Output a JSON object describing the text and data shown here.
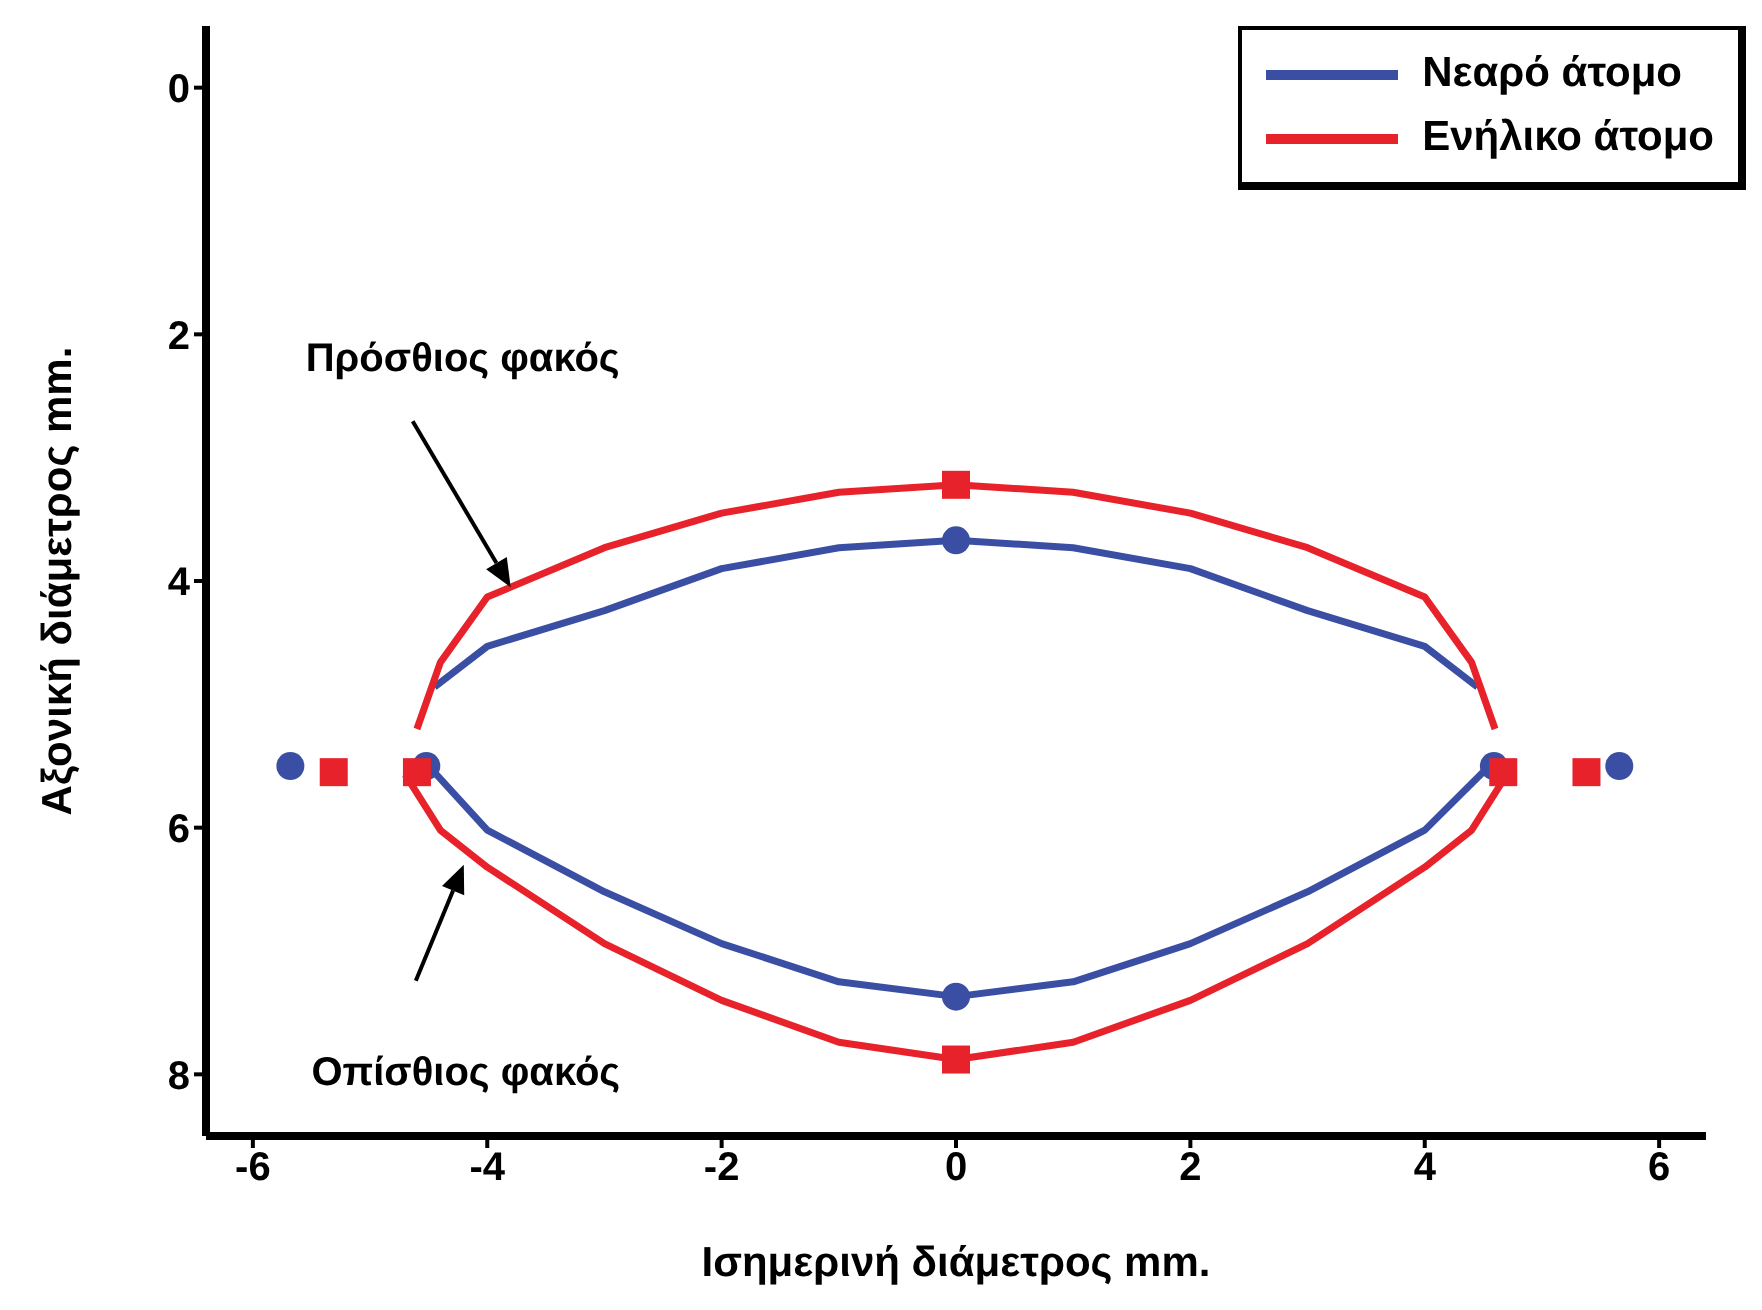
{
  "chart_data": {
    "type": "line",
    "xlabel": "Ισημερινή διάμετρος mm.",
    "ylabel": "Αξονική διάμετρος mm.",
    "xlim": [
      -6.4,
      6.4
    ],
    "xticks": [
      -6,
      -4,
      -2,
      0,
      2,
      4,
      6
    ],
    "ylim": [
      8.5,
      -0.5
    ],
    "yticks": [
      0,
      2,
      4,
      6,
      8
    ],
    "grid": false,
    "legend": "top right",
    "line_style": "solid",
    "series": [
      {
        "name": "Νεαρό άτομο",
        "color": "#3a4fa3",
        "marker": "none",
        "x": [
          -4.45,
          -4,
          -3,
          -2,
          -1,
          0,
          1,
          2,
          3,
          4,
          4.45
        ],
        "values": [
          4.86,
          4.53,
          4.24,
          3.9,
          3.73,
          3.67,
          3.73,
          3.9,
          4.24,
          4.53,
          4.86
        ]
      },
      {
        "color": "#3a4fa3",
        "marker": "none",
        "x": [
          -4.5,
          -4,
          -3,
          -2,
          -1,
          0,
          1,
          2,
          3,
          4,
          4.55
        ],
        "values": [
          5.5,
          6.02,
          6.52,
          6.94,
          7.25,
          7.37,
          7.25,
          6.94,
          6.52,
          6.02,
          5.5
        ]
      },
      {
        "name": "Ενήλικο άτομο",
        "color": "#e8222a",
        "marker": "none",
        "x": [
          -4.6,
          -4.4,
          -4,
          -3,
          -2,
          -1,
          0,
          1,
          2,
          3,
          4,
          4.4,
          4.6
        ],
        "values": [
          5.2,
          4.66,
          4.13,
          3.73,
          3.45,
          3.28,
          3.22,
          3.28,
          3.45,
          3.73,
          4.13,
          4.66,
          5.2
        ]
      },
      {
        "color": "#e8222a",
        "marker": "none",
        "x": [
          -4.7,
          -4.4,
          -4,
          -3,
          -2,
          -1,
          0,
          1,
          2,
          3,
          4,
          4.4,
          4.7
        ],
        "values": [
          5.57,
          6.02,
          6.32,
          6.94,
          7.4,
          7.74,
          7.88,
          7.74,
          7.4,
          6.94,
          6.32,
          6.02,
          5.57
        ]
      },
      {
        "color": "#3a4fa3",
        "type": "scatter",
        "marker": "circle",
        "x": [
          -5.68,
          -4.52,
          0,
          0,
          4.59,
          5.66
        ],
        "values": [
          5.5,
          5.5,
          3.67,
          7.37,
          5.5,
          5.5
        ]
      },
      {
        "color": "#e8222a",
        "type": "scatter",
        "marker": "square",
        "x": [
          -5.31,
          -4.6,
          0,
          0,
          4.67,
          5.38
        ],
        "values": [
          5.55,
          5.55,
          3.22,
          7.88,
          5.55,
          5.55
        ]
      }
    ],
    "annotations": [
      "Πρόσθιος φακός",
      "Οπίσθιος φακός"
    ]
  }
}
